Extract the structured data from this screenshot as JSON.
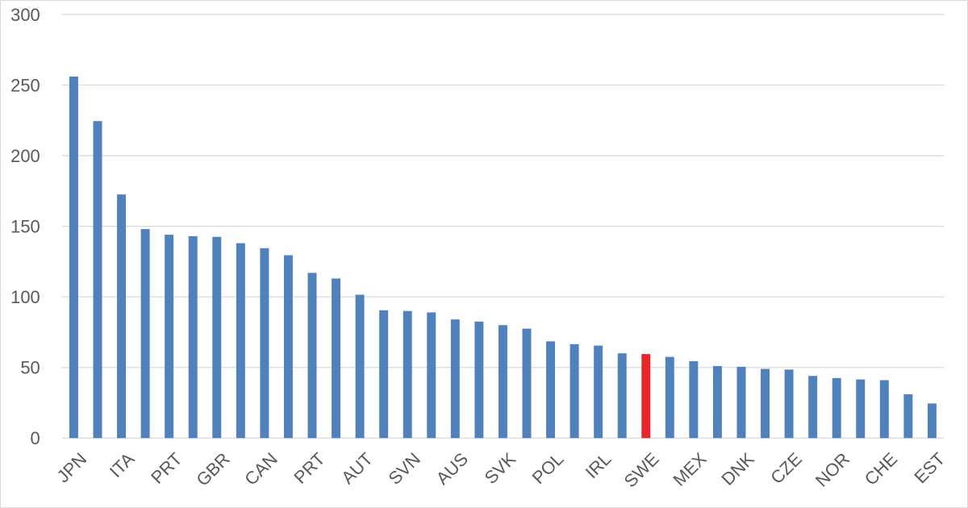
{
  "chart_data": {
    "type": "bar",
    "title": "",
    "xlabel": "",
    "ylabel": "",
    "ylim": [
      0,
      300
    ],
    "yticks": [
      0,
      50,
      100,
      150,
      200,
      250,
      300
    ],
    "grid": true,
    "legend": "none",
    "bar_color": "#4f81bd",
    "highlight_color": "#e8262a",
    "highlight_index": 24,
    "categories": [
      "JPN",
      "",
      "ITA",
      "",
      "PRT",
      "",
      "GBR",
      "",
      "CAN",
      "",
      "PRT",
      "",
      "AUT",
      "",
      "SVN",
      "",
      "AUS",
      "",
      "SVK",
      "",
      "POL",
      "",
      "IRL",
      "",
      "SWE",
      "",
      "MEX",
      "",
      "DNK",
      "",
      "CZE",
      "",
      "NOR",
      "",
      "CHE",
      "",
      "EST"
    ],
    "values": [
      256,
      224.5,
      172.5,
      148,
      144,
      143,
      142.5,
      138,
      134.5,
      129.5,
      117,
      113,
      101.5,
      90.5,
      90,
      89,
      84,
      82.5,
      80,
      77.5,
      68.5,
      66.5,
      65.5,
      60,
      59.5,
      57.5,
      54.5,
      51,
      50.5,
      49,
      48.5,
      44,
      42.5,
      41.5,
      41,
      31,
      24.5
    ]
  }
}
